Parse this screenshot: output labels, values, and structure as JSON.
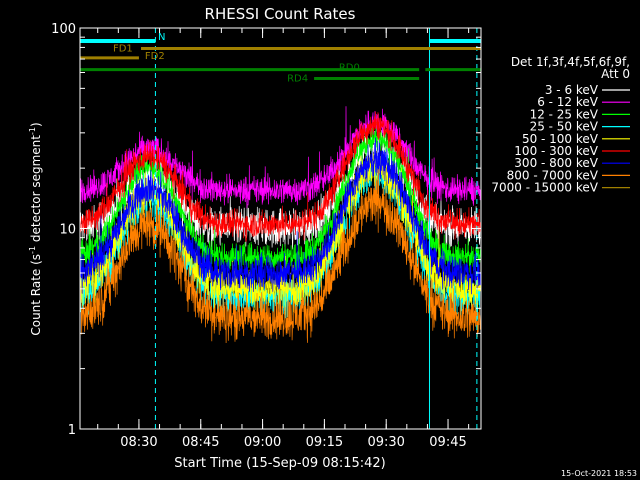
{
  "chart_data": {
    "type": "line",
    "title": "RHESSI Count Rates",
    "xlabel": "Start Time (15-Sep-09 08:15:42)",
    "ylabel_main": "Count Rate (s",
    "ylabel_sup1": "-1",
    "ylabel_mid": " detector segment",
    "ylabel_sup2": "-1",
    "ylabel_end": ")",
    "x_scale": "time",
    "x_range_min": [
      495.7,
      593.0
    ],
    "x_ticks": [
      {
        "label": "08:30",
        "min": 510
      },
      {
        "label": "08:45",
        "min": 525
      },
      {
        "label": "09:00",
        "min": 540
      },
      {
        "label": "09:15",
        "min": 555
      },
      {
        "label": "09:30",
        "min": 570
      },
      {
        "label": "09:45",
        "min": 585
      }
    ],
    "y_scale": "log",
    "ylim": [
      1,
      100
    ],
    "y_ticks": [
      {
        "label": "1",
        "value": 1
      },
      {
        "label": "10",
        "value": 10
      },
      {
        "label": "100",
        "value": 100
      }
    ],
    "legend_header": [
      "Det 1f,3f,4f,5f,6f,9f,",
      "Att 0"
    ],
    "legend_position": "right",
    "series": [
      {
        "name": "3 - 6 keV",
        "color": "#ffffff",
        "base": 10.0,
        "peaks": [
          18,
          26
        ],
        "noise": 0.07
      },
      {
        "name": "6 - 12 keV",
        "color": "#ff00ff",
        "base": 15.5,
        "peaks": [
          25,
          34
        ],
        "noise": 0.05
      },
      {
        "name": "12 - 25 keV",
        "color": "#00ff00",
        "base": 7.2,
        "peaks": [
          20,
          28
        ],
        "noise": 0.05
      },
      {
        "name": "25 - 50 keV",
        "color": "#00ffff",
        "base": 4.6,
        "peaks": [
          14,
          19
        ],
        "noise": 0.07
      },
      {
        "name": "50 - 100 keV",
        "color": "#ffff00",
        "base": 5.0,
        "peaks": [
          15,
          20
        ],
        "noise": 0.07
      },
      {
        "name": "100 - 300 keV",
        "color": "#ff0000",
        "base": 10.5,
        "peaks": [
          23,
          33
        ],
        "noise": 0.05
      },
      {
        "name": "300 - 800 keV",
        "color": "#0000ff",
        "base": 6.0,
        "peaks": [
          16,
          22
        ],
        "noise": 0.06
      },
      {
        "name": "800 - 7000 keV",
        "color": "#ff8000",
        "base": 3.6,
        "peaks": [
          10.5,
          13.5
        ],
        "noise": 0.08
      },
      {
        "name": "7000 - 15000 keV",
        "color": "#a08000",
        "base": null,
        "peaks": null,
        "noise": 0
      }
    ],
    "annotations": {
      "night_bars": [
        {
          "label": "N",
          "start_min": 495.7,
          "end_min": 514.0,
          "color": "#00ffff"
        },
        {
          "label": "",
          "start_min": 580.5,
          "end_min": 593.0,
          "color": "#00ffff"
        }
      ],
      "flags": [
        {
          "label": "FD1",
          "start_min": 510.5,
          "end_min": 593.0,
          "value": 79,
          "color": "#a08000"
        },
        {
          "label": "FD2",
          "start_min": 495.7,
          "end_min": 510.0,
          "value": 71,
          "color": "#a08000"
        },
        {
          "label": "RD0",
          "start_min": 495.7,
          "end_min": 593.0,
          "value": 62,
          "gap_min": [
            578.0,
            579.5
          ],
          "color": "#008000"
        },
        {
          "label": "RD4",
          "start_min": 552.5,
          "end_min": 578.0,
          "value": 56,
          "color": "#008000"
        }
      ],
      "vlines_solid_min": [
        495.7,
        580.5
      ],
      "vlines_dashed_min": [
        514.0,
        592.0
      ]
    },
    "grid": false
  },
  "footer": {
    "timestamp": "15-Oct-2021 18:53"
  }
}
